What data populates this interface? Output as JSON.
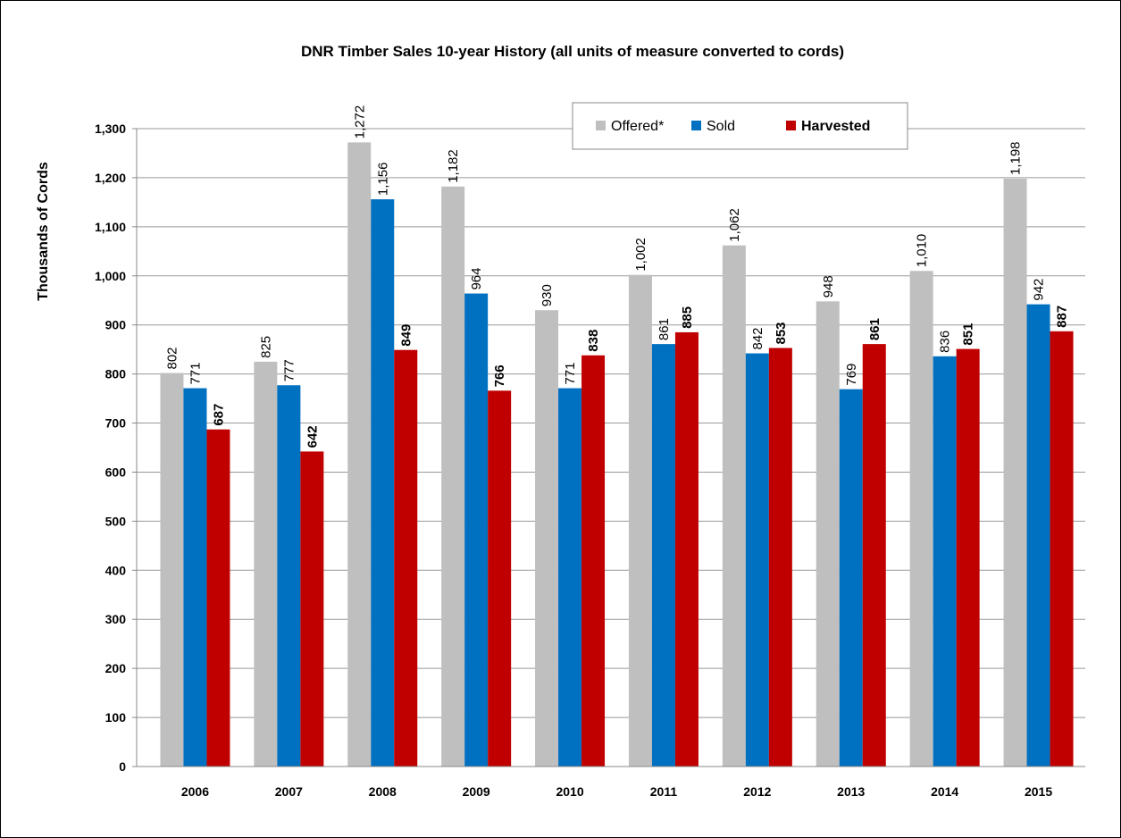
{
  "chart_data": {
    "type": "bar",
    "title": "DNR Timber Sales 10-year History (all units of measure converted to cords)",
    "y_label": "Thousands  of Cords",
    "categories": [
      "2006",
      "2007",
      "2008",
      "2009",
      "2010",
      "2011",
      "2012",
      "2013",
      "2014",
      "2015"
    ],
    "series": [
      {
        "name": "Offered*",
        "color": "#bfbfbf",
        "values": [
          802,
          825,
          1272,
          1182,
          930,
          1002,
          1062,
          948,
          1010,
          1198
        ],
        "value_labels": [
          "802",
          "825",
          "1,272",
          "1,182",
          "930",
          "1,002",
          "1,062",
          "948",
          "1,010",
          "1,198"
        ]
      },
      {
        "name": "Sold",
        "color": "#0070c0",
        "values": [
          771,
          777,
          1156,
          964,
          771,
          861,
          842,
          769,
          836,
          942
        ],
        "value_labels": [
          "771",
          "777",
          "1,156",
          "964",
          "771",
          "861",
          "842",
          "769",
          "836",
          "942"
        ]
      },
      {
        "name": "Harvested",
        "color": "#c00000",
        "values": [
          687,
          642,
          849,
          766,
          838,
          885,
          853,
          861,
          851,
          887
        ]
      }
    ],
    "ylim": [
      0,
      1300
    ],
    "yticks": [
      0,
      100,
      200,
      300,
      400,
      500,
      600,
      700,
      800,
      900,
      {
        "value": 1000,
        "label": "1,000"
      },
      {
        "value": 1100,
        "label": "1,100"
      },
      {
        "value": 1200,
        "label": "1,200"
      },
      {
        "value": 1300,
        "label": "1,300"
      }
    ],
    "grid": true,
    "legend": "top"
  }
}
